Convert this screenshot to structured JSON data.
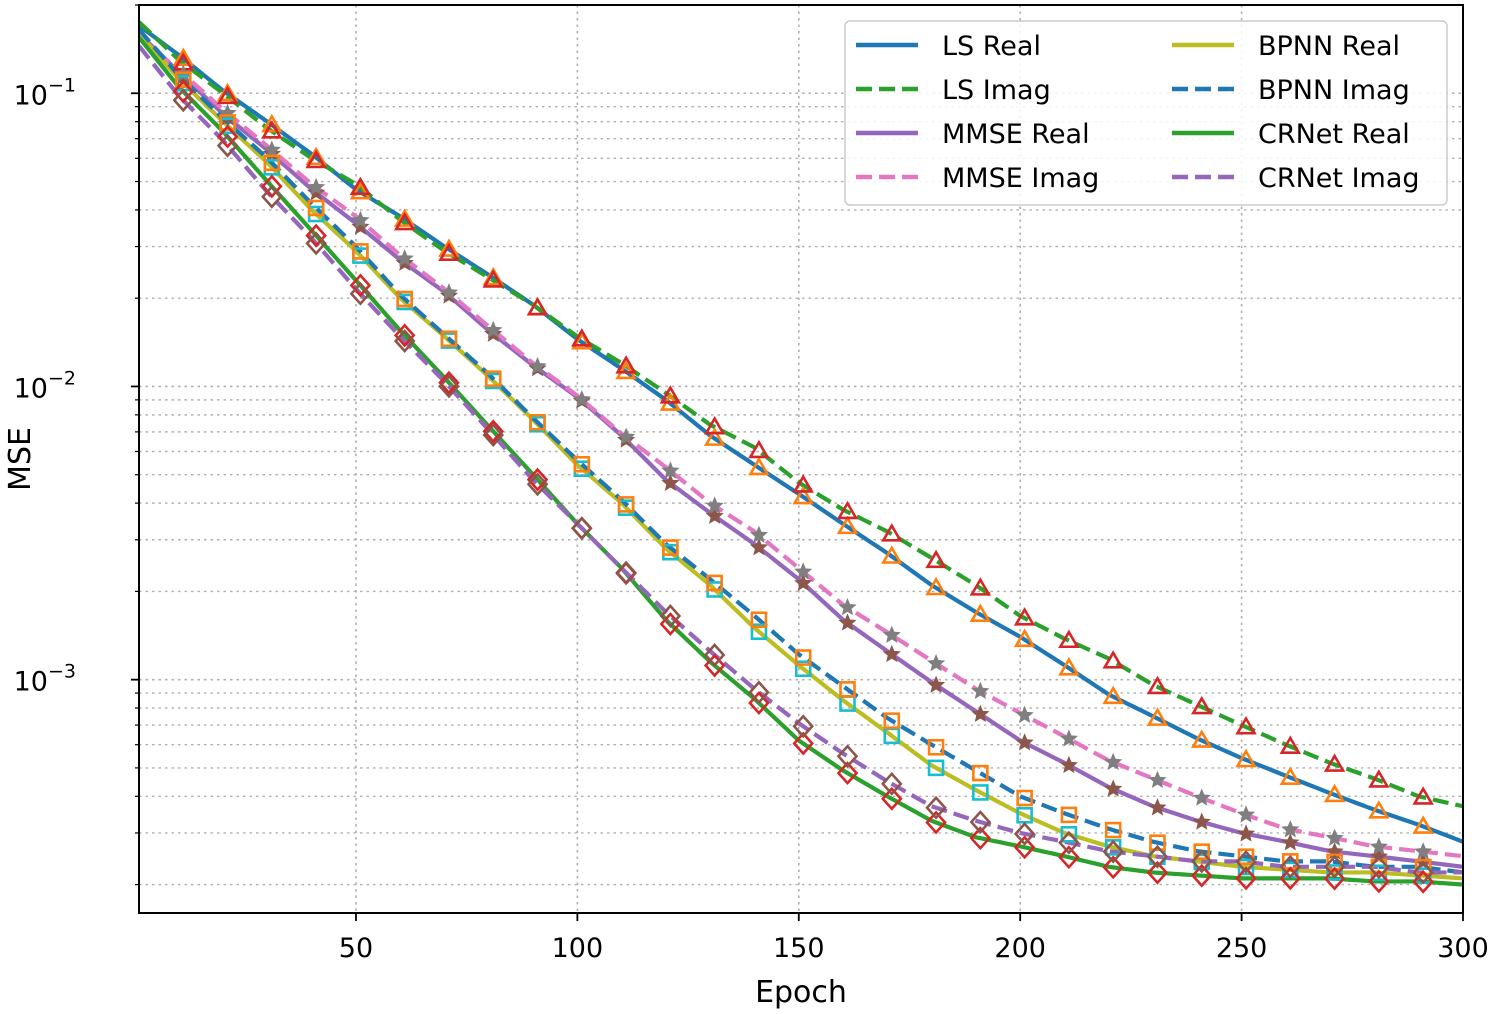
{
  "chart_data": {
    "type": "line",
    "title": "",
    "xlabel": "Epoch",
    "ylabel": "MSE",
    "xlim": [
      1,
      300
    ],
    "ylim": [
      0.00016,
      0.2
    ],
    "yscale": "log",
    "grid": true,
    "legend_position": "top-right",
    "legend_columns": 2,
    "x_ticks": [
      50,
      100,
      150,
      200,
      250,
      300
    ],
    "x_tick_labels": [
      "50",
      "100",
      "150",
      "200",
      "250",
      "300"
    ],
    "y_ticks": [
      {
        "value": 0.1,
        "base": "10",
        "exp": "−1"
      },
      {
        "value": 0.01,
        "base": "10",
        "exp": "−2"
      },
      {
        "value": 0.001,
        "base": "10",
        "exp": "−3"
      }
    ],
    "marker_x": [
      11,
      21,
      31,
      41,
      51,
      61,
      71,
      81,
      91,
      101,
      111,
      121,
      131,
      141,
      151,
      161,
      171,
      181,
      191,
      201,
      211,
      221,
      231,
      241,
      251,
      261,
      271,
      281,
      291
    ],
    "series": [
      {
        "name": "LS Real",
        "color": "#1f77b4",
        "dash": "solid",
        "marker": "triangle",
        "marker_color": "#ff7f0e",
        "x": [
          1,
          10,
          20,
          30,
          40,
          50,
          60,
          70,
          80,
          90,
          100,
          110,
          120,
          130,
          140,
          150,
          160,
          170,
          180,
          190,
          200,
          210,
          220,
          230,
          240,
          250,
          260,
          270,
          280,
          290,
          300
        ],
        "y": [
          0.17,
          0.135,
          0.102,
          0.08,
          0.062,
          0.047,
          0.038,
          0.03,
          0.024,
          0.019,
          0.0145,
          0.0115,
          0.009,
          0.0068,
          0.0054,
          0.0043,
          0.0034,
          0.0027,
          0.0021,
          0.0017,
          0.0014,
          0.00112,
          0.00089,
          0.00075,
          0.00063,
          0.00054,
          0.00047,
          0.00041,
          0.00036,
          0.00032,
          0.00028
        ]
      },
      {
        "name": "LS Imag",
        "color": "#2ca02c",
        "dash": "dashed",
        "marker": "triangle",
        "marker_color": "#d62728",
        "x": [
          1,
          10,
          20,
          30,
          40,
          50,
          60,
          70,
          80,
          90,
          100,
          110,
          120,
          130,
          140,
          150,
          160,
          170,
          180,
          190,
          200,
          210,
          220,
          230,
          240,
          250,
          260,
          270,
          280,
          290,
          300
        ],
        "y": [
          0.175,
          0.13,
          0.1,
          0.076,
          0.06,
          0.049,
          0.037,
          0.029,
          0.0235,
          0.019,
          0.0148,
          0.012,
          0.0095,
          0.0074,
          0.0062,
          0.0047,
          0.0038,
          0.0032,
          0.0026,
          0.0021,
          0.00165,
          0.00138,
          0.00118,
          0.00096,
          0.00082,
          0.0007,
          0.0006,
          0.00052,
          0.00046,
          0.0004,
          0.00037
        ]
      },
      {
        "name": "MMSE Real",
        "color": "#9467bd",
        "dash": "solid",
        "marker": "star",
        "marker_color": "#8c564b",
        "x": [
          1,
          10,
          20,
          30,
          40,
          50,
          60,
          70,
          80,
          90,
          100,
          110,
          120,
          130,
          140,
          150,
          160,
          170,
          180,
          190,
          200,
          210,
          220,
          230,
          240,
          250,
          260,
          270,
          280,
          290,
          300
        ],
        "y": [
          0.16,
          0.118,
          0.085,
          0.064,
          0.047,
          0.036,
          0.027,
          0.021,
          0.0155,
          0.0118,
          0.0092,
          0.0068,
          0.0048,
          0.0037,
          0.0029,
          0.0022,
          0.0016,
          0.00125,
          0.00098,
          0.00078,
          0.00062,
          0.00052,
          0.00043,
          0.00037,
          0.00033,
          0.0003,
          0.00028,
          0.00026,
          0.00025,
          0.00024,
          0.00023
        ]
      },
      {
        "name": "MMSE Imag",
        "color": "#e377c2",
        "dash": "dashed",
        "marker": "star",
        "marker_color": "#7f7f7f",
        "x": [
          1,
          10,
          20,
          30,
          40,
          50,
          60,
          70,
          80,
          90,
          100,
          110,
          120,
          130,
          140,
          150,
          160,
          170,
          180,
          190,
          200,
          210,
          220,
          230,
          240,
          250,
          260,
          270,
          280,
          290,
          300
        ],
        "y": [
          0.155,
          0.12,
          0.088,
          0.066,
          0.049,
          0.038,
          0.028,
          0.0215,
          0.016,
          0.012,
          0.0093,
          0.0069,
          0.0053,
          0.004,
          0.0032,
          0.0024,
          0.0018,
          0.00145,
          0.00116,
          0.00093,
          0.00077,
          0.00064,
          0.00053,
          0.00046,
          0.0004,
          0.00035,
          0.00031,
          0.00029,
          0.00027,
          0.00026,
          0.00025
        ]
      },
      {
        "name": "BPNN Real",
        "color": "#bcbd22",
        "dash": "solid",
        "marker": "square",
        "marker_color": "#17becf",
        "x": [
          1,
          10,
          20,
          30,
          40,
          50,
          60,
          70,
          80,
          90,
          100,
          110,
          120,
          130,
          140,
          150,
          160,
          170,
          180,
          190,
          200,
          210,
          220,
          230,
          240,
          250,
          260,
          270,
          280,
          290,
          300
        ],
        "y": [
          0.16,
          0.112,
          0.08,
          0.058,
          0.04,
          0.029,
          0.02,
          0.0148,
          0.0108,
          0.0077,
          0.0054,
          0.004,
          0.0028,
          0.0021,
          0.0015,
          0.00112,
          0.00085,
          0.00066,
          0.00051,
          0.00042,
          0.00035,
          0.0003,
          0.00027,
          0.00025,
          0.00024,
          0.00023,
          0.000225,
          0.00022,
          0.00022,
          0.000215,
          0.00021
        ]
      },
      {
        "name": "BPNN Imag",
        "color": "#1f77b4",
        "dash": "dashed",
        "marker": "square",
        "marker_color": "#ff7f0e",
        "x": [
          1,
          10,
          20,
          30,
          40,
          50,
          60,
          70,
          80,
          90,
          100,
          110,
          120,
          130,
          140,
          150,
          160,
          170,
          180,
          190,
          200,
          210,
          220,
          230,
          240,
          250,
          260,
          270,
          280,
          290,
          300
        ],
        "y": [
          0.165,
          0.115,
          0.082,
          0.06,
          0.042,
          0.03,
          0.0205,
          0.015,
          0.011,
          0.0078,
          0.0056,
          0.0041,
          0.0029,
          0.0022,
          0.00165,
          0.00122,
          0.00095,
          0.00074,
          0.0006,
          0.00049,
          0.0004,
          0.00035,
          0.00031,
          0.00028,
          0.00026,
          0.00025,
          0.00024,
          0.00024,
          0.00023,
          0.00023,
          0.00022
        ]
      },
      {
        "name": "CRNet Real",
        "color": "#2ca02c",
        "dash": "solid",
        "marker": "diamond",
        "marker_color": "#d62728",
        "x": [
          1,
          10,
          20,
          30,
          40,
          50,
          60,
          70,
          80,
          90,
          100,
          110,
          120,
          130,
          140,
          150,
          160,
          170,
          180,
          190,
          200,
          210,
          220,
          230,
          240,
          250,
          260,
          270,
          280,
          290,
          300
        ],
        "y": [
          0.155,
          0.105,
          0.074,
          0.05,
          0.034,
          0.023,
          0.0155,
          0.0107,
          0.0073,
          0.005,
          0.0034,
          0.0024,
          0.0016,
          0.00115,
          0.00086,
          0.00062,
          0.00049,
          0.0004,
          0.00033,
          0.00029,
          0.00027,
          0.00025,
          0.00023,
          0.00022,
          0.000215,
          0.00021,
          0.00021,
          0.00021,
          0.000205,
          0.000205,
          0.0002
        ]
      },
      {
        "name": "CRNet Imag",
        "color": "#9467bd",
        "dash": "dashed",
        "marker": "diamond",
        "marker_color": "#8c564b",
        "x": [
          1,
          10,
          20,
          30,
          40,
          50,
          60,
          70,
          80,
          90,
          100,
          110,
          120,
          130,
          140,
          150,
          160,
          170,
          180,
          190,
          200,
          210,
          220,
          230,
          240,
          250,
          260,
          270,
          280,
          290,
          300
        ],
        "y": [
          0.145,
          0.098,
          0.069,
          0.046,
          0.032,
          0.0215,
          0.0148,
          0.0104,
          0.0071,
          0.0048,
          0.0034,
          0.0024,
          0.0017,
          0.00125,
          0.00093,
          0.00071,
          0.00056,
          0.00045,
          0.00037,
          0.00033,
          0.0003,
          0.00028,
          0.00026,
          0.00025,
          0.00024,
          0.00024,
          0.00023,
          0.00023,
          0.00023,
          0.00022,
          0.00022
        ]
      }
    ]
  }
}
